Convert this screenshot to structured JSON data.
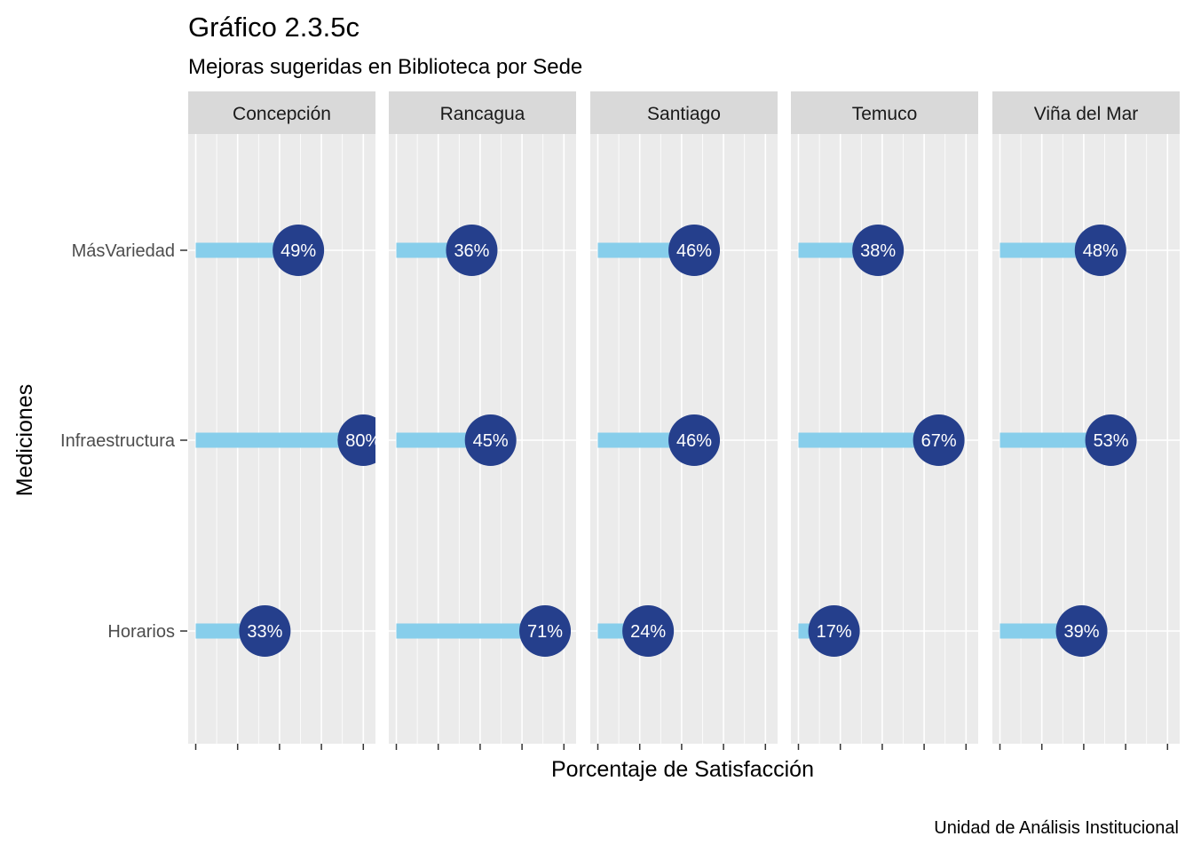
{
  "chart_data": {
    "type": "bar",
    "title": "Gráfico 2.3.5c",
    "subtitle": "Mejoras sugeridas en Biblioteca por Sede",
    "xlabel": "Porcentaje de Satisfacción",
    "ylabel": "Mediciones",
    "caption": "Unidad de Análisis Institucional",
    "categories": [
      "MásVariedad",
      "Infraestructura",
      "Horarios"
    ],
    "facets": [
      {
        "name": "Concepción",
        "values": [
          49,
          80,
          33
        ],
        "labels": [
          "49%",
          "80%",
          "33%"
        ]
      },
      {
        "name": "Rancagua",
        "values": [
          36,
          45,
          71
        ],
        "labels": [
          "36%",
          "45%",
          "71%"
        ]
      },
      {
        "name": "Santiago",
        "values": [
          46,
          46,
          24
        ],
        "labels": [
          "46%",
          "46%",
          "24%"
        ]
      },
      {
        "name": "Temuco",
        "values": [
          38,
          67,
          17
        ],
        "labels": [
          "38%",
          "67%",
          "17%"
        ]
      },
      {
        "name": "Viña del Mar",
        "values": [
          48,
          53,
          39
        ],
        "labels": [
          "48%",
          "53%",
          "39%"
        ]
      }
    ],
    "xlim": [
      0,
      80
    ],
    "grid": true,
    "colors": {
      "bar": "#87ceeb",
      "point": "#253f8c",
      "panel_bg": "#ebebeb",
      "strip_bg": "#d9d9d9",
      "grid": "#ffffff"
    }
  }
}
